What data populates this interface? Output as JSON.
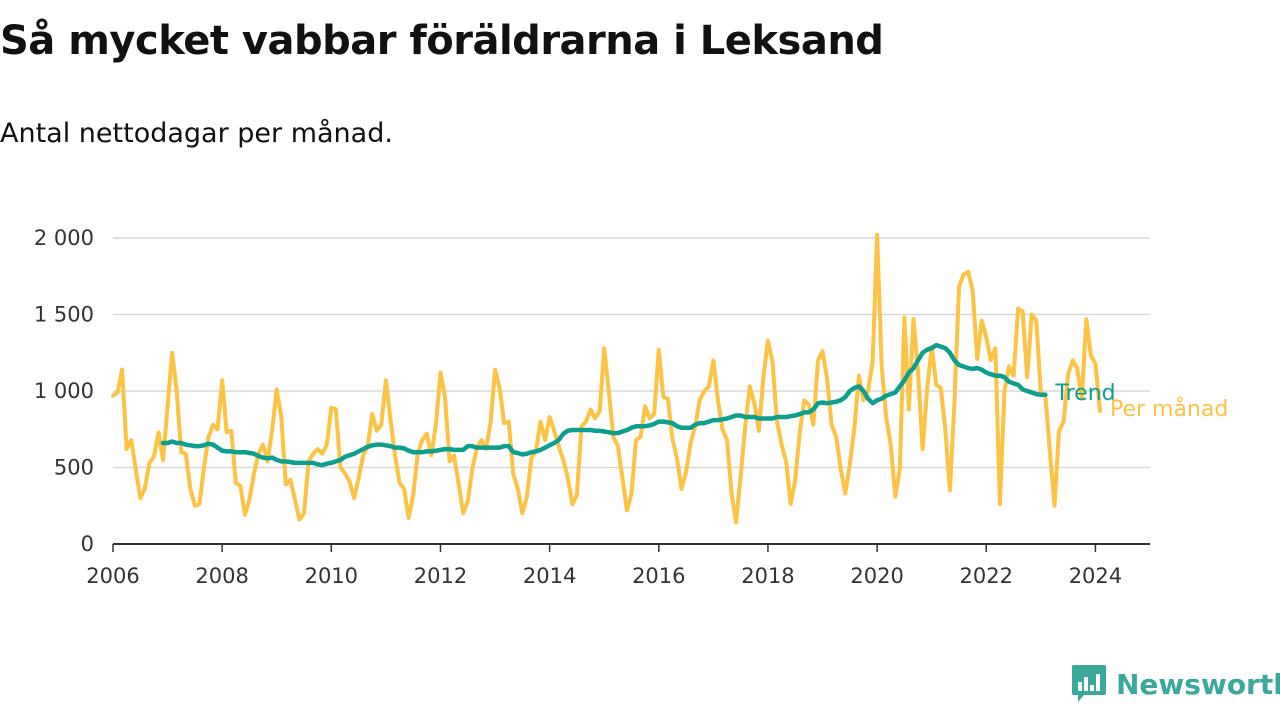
{
  "title": "Så mycket vabbar föräldrarna i Leksand",
  "subtitle": "Antal nettodagar per månad.",
  "brand": {
    "name": "Newsworthy",
    "icon": "bar-chart-speech-icon",
    "color": "#3aa89a"
  },
  "colors": {
    "per_manad": "#fdc344",
    "trend": "#0e9e8e",
    "grid": "#d9d9d9",
    "axis": "#333333"
  },
  "chart_data": {
    "type": "line",
    "title": "Så mycket vabbar föräldrarna i Leksand",
    "subtitle": "Antal nettodagar per månad.",
    "xlabel": "",
    "ylabel": "",
    "xlim": [
      2006.0,
      2025.0
    ],
    "ylim": [
      0,
      2000
    ],
    "yticks": [
      0,
      500,
      1000,
      1500,
      2000
    ],
    "ytick_labels": [
      "0",
      "500",
      "1 000",
      "1 500",
      "2 000"
    ],
    "xticks": [
      2006,
      2008,
      2010,
      2012,
      2014,
      2016,
      2018,
      2020,
      2022,
      2024
    ],
    "xtick_labels": [
      "2006",
      "2008",
      "2010",
      "2012",
      "2014",
      "2016",
      "2018",
      "2020",
      "2022",
      "2024"
    ],
    "grid": true,
    "legend": "inline-right",
    "series": [
      {
        "name": "Per månad",
        "color": "#fdc344",
        "start": 2006.0,
        "step": 0.0833333,
        "values": [
          970,
          990,
          1140,
          620,
          680,
          490,
          300,
          360,
          530,
          570,
          730,
          550,
          900,
          1250,
          1000,
          600,
          590,
          360,
          250,
          260,
          500,
          700,
          780,
          750,
          1070,
          730,
          740,
          400,
          380,
          190,
          290,
          460,
          590,
          650,
          540,
          750,
          1010,
          830,
          390,
          420,
          290,
          160,
          200,
          540,
          590,
          620,
          590,
          650,
          890,
          880,
          500,
          460,
          410,
          300,
          430,
          580,
          640,
          850,
          740,
          780,
          1070,
          820,
          580,
          400,
          360,
          170,
          320,
          590,
          680,
          720,
          580,
          780,
          1120,
          960,
          540,
          580,
          390,
          200,
          280,
          490,
          630,
          680,
          620,
          790,
          1140,
          1020,
          790,
          800,
          460,
          360,
          200,
          310,
          560,
          610,
          800,
          680,
          830,
          740,
          640,
          550,
          430,
          260,
          320,
          770,
          800,
          880,
          820,
          870,
          1280,
          1000,
          700,
          640,
          430,
          220,
          330,
          680,
          700,
          900,
          820,
          850,
          1270,
          960,
          950,
          690,
          560,
          360,
          470,
          660,
          770,
          940,
          1000,
          1030,
          1200,
          940,
          750,
          680,
          330,
          140,
          450,
          770,
          1030,
          920,
          740,
          1090,
          1330,
          1190,
          800,
          650,
          540,
          260,
          420,
          730,
          940,
          910,
          780,
          1200,
          1260,
          1080,
          780,
          700,
          490,
          330,
          520,
          760,
          1100,
          940,
          1000,
          1190,
          2020,
          1160,
          830,
          650,
          310,
          490,
          1480,
          880,
          1470,
          1130,
          620,
          1010,
          1290,
          1040,
          1020,
          750,
          350,
          920,
          1680,
          1760,
          1780,
          1660,
          1210,
          1460,
          1350,
          1200,
          1280,
          260,
          1000,
          1160,
          1100,
          1540,
          1520,
          1090,
          1500,
          1460,
          990,
          970,
          600,
          250,
          740,
          800,
          1110,
          1200,
          1150,
          950,
          1470,
          1230,
          1180,
          870
        ]
      },
      {
        "name": "Trend",
        "color": "#0e9e8e",
        "start": 2006.9167,
        "step": 0.0833333,
        "values": [
          660,
          660,
          670,
          660,
          660,
          650,
          645,
          640,
          640,
          645,
          655,
          650,
          630,
          610,
          605,
          605,
          600,
          600,
          600,
          595,
          590,
          575,
          565,
          560,
          565,
          550,
          540,
          540,
          535,
          530,
          530,
          530,
          530,
          530,
          520,
          515,
          525,
          530,
          540,
          550,
          570,
          580,
          590,
          605,
          620,
          635,
          645,
          650,
          650,
          645,
          640,
          630,
          630,
          625,
          610,
          600,
          600,
          600,
          605,
          605,
          610,
          615,
          620,
          620,
          615,
          615,
          615,
          640,
          640,
          630,
          630,
          630,
          630,
          630,
          630,
          640,
          640,
          600,
          595,
          585,
          590,
          600,
          605,
          615,
          630,
          645,
          660,
          680,
          720,
          740,
          745,
          745,
          745,
          745,
          745,
          740,
          740,
          735,
          730,
          725,
          725,
          735,
          745,
          760,
          770,
          770,
          770,
          775,
          785,
          800,
          800,
          795,
          790,
          770,
          760,
          760,
          760,
          780,
          790,
          790,
          800,
          810,
          810,
          815,
          820,
          830,
          840,
          840,
          830,
          830,
          830,
          820,
          820,
          820,
          820,
          830,
          830,
          830,
          835,
          840,
          850,
          860,
          860,
          880,
          920,
          925,
          920,
          925,
          930,
          940,
          960,
          1000,
          1020,
          1030,
          1000,
          950,
          920,
          940,
          950,
          970,
          980,
          990,
          1030,
          1070,
          1120,
          1150,
          1200,
          1250,
          1270,
          1280,
          1300,
          1290,
          1280,
          1250,
          1200,
          1170,
          1160,
          1150,
          1145,
          1150,
          1140,
          1120,
          1110,
          1100,
          1100,
          1090,
          1060,
          1050,
          1040,
          1010,
          1000,
          990,
          980,
          975,
          975
        ]
      }
    ]
  }
}
